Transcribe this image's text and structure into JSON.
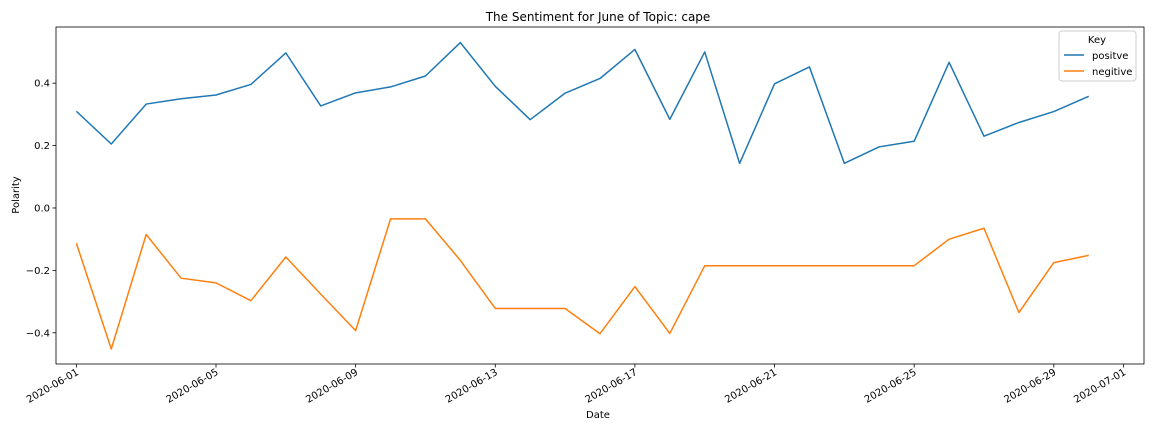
{
  "chart_data": {
    "type": "line",
    "title": "The Sentiment for June of Topic: cape",
    "xlabel": "Date",
    "ylabel": "Polarity",
    "xlim": [
      "2020-05-31T10:00",
      "2020-07-01T14:00"
    ],
    "ylim": [
      -0.5,
      0.58
    ],
    "grid": false,
    "legend": {
      "title": "Key",
      "placement": "top-right"
    },
    "x_ticks": [
      "2020-06-01",
      "2020-06-05",
      "2020-06-09",
      "2020-06-13",
      "2020-06-17",
      "2020-06-21",
      "2020-06-25",
      "2020-06-29",
      "2020-07-01"
    ],
    "y_ticks": [
      "0.4",
      "0.2",
      "0.0",
      "−0.2",
      "−0.4"
    ],
    "y_tick_values": [
      0.4,
      0.2,
      0.0,
      -0.2,
      -0.4
    ],
    "x": [
      "2020-06-01",
      "2020-06-02",
      "2020-06-03",
      "2020-06-04",
      "2020-06-05",
      "2020-06-06",
      "2020-06-07",
      "2020-06-08",
      "2020-06-09",
      "2020-06-10",
      "2020-06-11",
      "2020-06-12",
      "2020-06-13",
      "2020-06-14",
      "2020-06-15",
      "2020-06-16",
      "2020-06-17",
      "2020-06-18",
      "2020-06-19",
      "2020-06-20",
      "2020-06-21",
      "2020-06-22",
      "2020-06-23",
      "2020-06-24",
      "2020-06-25",
      "2020-06-26",
      "2020-06-27",
      "2020-06-28",
      "2020-06-29",
      "2020-06-30"
    ],
    "series": [
      {
        "name": "positve",
        "color": "#1f77b4",
        "values": [
          0.31,
          0.205,
          0.333,
          0.35,
          0.362,
          0.396,
          0.497,
          0.327,
          0.369,
          0.388,
          0.423,
          0.53,
          0.39,
          0.283,
          0.368,
          0.415,
          0.508,
          0.284,
          0.5,
          0.143,
          0.398,
          0.452,
          0.143,
          0.196,
          0.214,
          0.467,
          0.23,
          0.274,
          0.309,
          0.358
        ]
      },
      {
        "name": "negitive",
        "color": "#ff7f0e",
        "values": [
          -0.113,
          -0.452,
          -0.085,
          -0.225,
          -0.24,
          -0.297,
          -0.157,
          -0.276,
          -0.393,
          -0.035,
          -0.035,
          -0.168,
          -0.322,
          -0.322,
          -0.322,
          -0.403,
          -0.252,
          -0.402,
          -0.185,
          -0.185,
          -0.185,
          -0.185,
          -0.185,
          -0.185,
          -0.185,
          -0.1,
          -0.065,
          -0.335,
          -0.175,
          -0.152
        ]
      }
    ]
  }
}
